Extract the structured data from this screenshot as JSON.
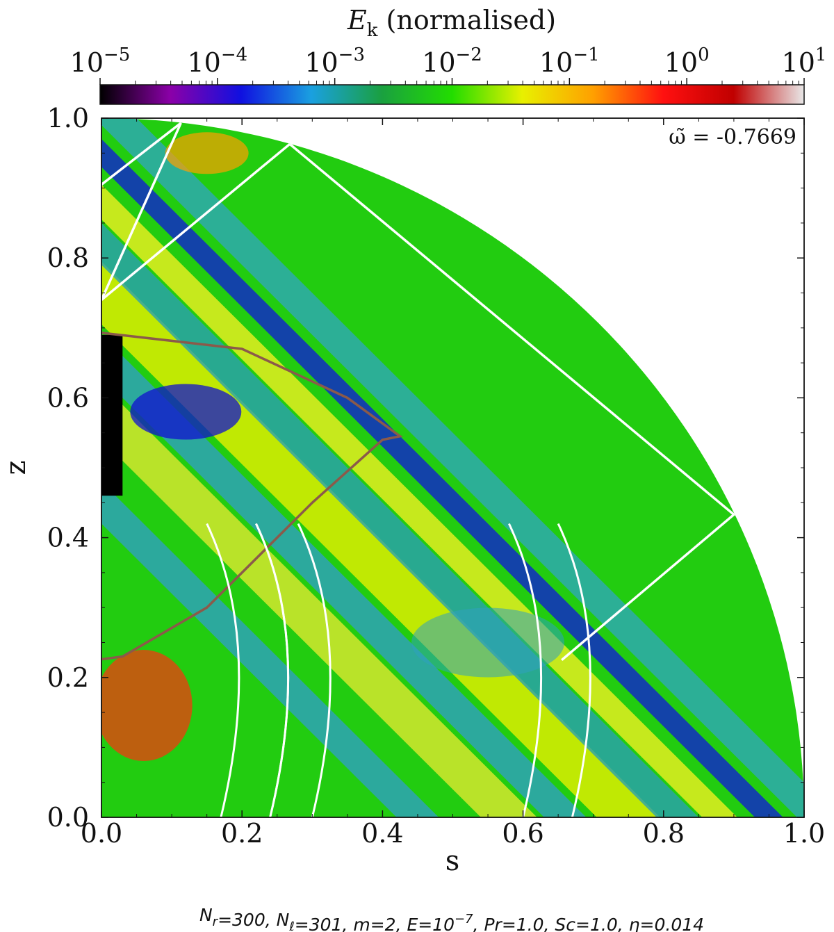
{
  "chart_data": {
    "type": "heatmap",
    "description_domain": "quarter disk, s from 0 to 1, z from 0 to 1",
    "xlabel": "s",
    "ylabel": "z",
    "xlim": [
      0.0,
      1.0
    ],
    "ylim": [
      0.0,
      1.0
    ],
    "xticks": [
      "0.0",
      "0.2",
      "0.4",
      "0.6",
      "0.8",
      "1.0"
    ],
    "yticks": [
      "0.0",
      "0.2",
      "0.4",
      "0.6",
      "0.8",
      "1.0"
    ],
    "colorbar": {
      "title_symbol": "E",
      "title_subscript": "k",
      "title_rest": " (normalised)",
      "scale": "log",
      "range": [
        1e-05,
        10
      ],
      "ticks": [
        {
          "base": "10",
          "exp": "−5"
        },
        {
          "base": "10",
          "exp": "−4"
        },
        {
          "base": "10",
          "exp": "−3"
        },
        {
          "base": "10",
          "exp": "−2"
        },
        {
          "base": "10",
          "exp": "−1"
        },
        {
          "base": "10",
          "exp": "0"
        },
        {
          "base": "10",
          "exp": "1"
        }
      ],
      "colors": [
        "#000000",
        "#8b00a8",
        "#1010e0",
        "#1aa0e0",
        "#1aa040",
        "#22dd00",
        "#e8f000",
        "#ffa000",
        "#ff1010",
        "#c00000",
        "#e8e8e8"
      ]
    },
    "annotation": "ω̃ = -0.7669",
    "region_outlines": [
      {
        "name": "white-rectangle-upper",
        "color": "#ffffff",
        "points": [
          [
            0.0,
            0.905
          ],
          [
            0.113,
            0.993
          ],
          [
            0.0,
            0.74
          ]
        ]
      },
      {
        "name": "white-rectangle-diagonal",
        "color": "#ffffff",
        "points": [
          [
            0.0,
            0.74
          ],
          [
            0.268,
            0.963
          ],
          [
            0.9,
            0.433
          ],
          [
            0.655,
            0.225
          ]
        ]
      },
      {
        "name": "brown-curve",
        "color": "#8b5a4a",
        "points": [
          [
            0.0,
            0.693
          ],
          [
            0.2,
            0.67
          ],
          [
            0.35,
            0.6
          ],
          [
            0.425,
            0.545
          ],
          [
            0.4,
            0.54
          ],
          [
            0.3,
            0.45
          ],
          [
            0.15,
            0.3
          ],
          [
            0.03,
            0.23
          ],
          [
            0.0,
            0.226
          ]
        ]
      }
    ]
  },
  "footer": {
    "parts": [
      {
        "t": "N",
        "sub": "r",
        "rest": "=300,  "
      },
      {
        "t": "N",
        "sub": "ℓ",
        "rest": "=301,  "
      },
      {
        "t": "m",
        "sub": "",
        "rest": "=2,  "
      },
      {
        "t": "E",
        "sub": "",
        "rest": "=10",
        "sup": "−7",
        "after": ",  "
      },
      {
        "t": "Pr",
        "sub": "",
        "rest": "=1.0,  "
      },
      {
        "t": "Sc",
        "sub": "",
        "rest": "=1.0,  "
      },
      {
        "t": "η",
        "sub": "",
        "rest": "=0.014"
      }
    ]
  }
}
